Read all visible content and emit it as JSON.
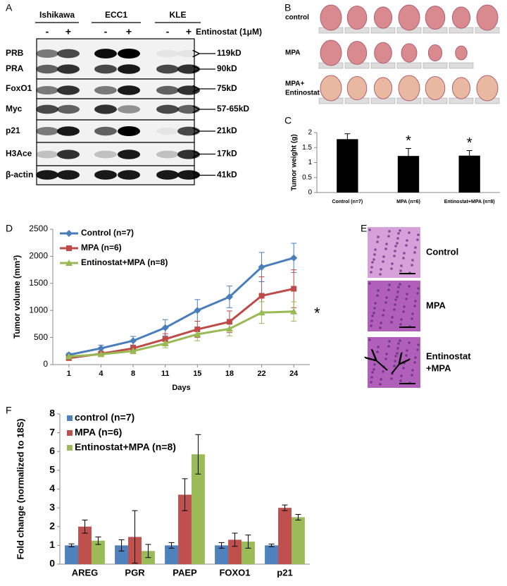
{
  "panel_letters": [
    "A",
    "B",
    "C",
    "D",
    "E",
    "F"
  ],
  "blot": {
    "cell_lines": [
      "Ishikawa",
      "ECC1",
      "KLE"
    ],
    "treatment": "Entinostat (1μM)",
    "signs": [
      "-",
      "+"
    ],
    "proteins": [
      "PRB",
      "PRA",
      "FoxO1",
      "Myc",
      "p21",
      "H3Ace",
      "β-actin"
    ],
    "sizes": [
      "119kD",
      "90kD",
      "75kD",
      "57-65kD",
      "21kD",
      "17kD",
      "41kD"
    ]
  },
  "tumor_photos": {
    "rows": [
      [
        "control"
      ],
      [
        "MPA"
      ],
      [
        "MPA+",
        "Entinostat"
      ]
    ]
  },
  "histology": {
    "labels": [
      [
        "Control"
      ],
      [
        "MPA"
      ],
      [
        "Entinostat",
        "+MPA"
      ]
    ]
  },
  "chart_data": [
    {
      "type": "bar",
      "ylabel": "Tumor weight (g)",
      "categories": [
        "Control (n=7)",
        "MPA (n=6)",
        "Entinostat+MPA (n=8)"
      ],
      "values": [
        1.78,
        1.22,
        1.23
      ],
      "errors": [
        0.18,
        0.25,
        0.17
      ],
      "significance": [
        null,
        "*",
        "*"
      ],
      "color": "#000000",
      "ylim": [
        0,
        2
      ],
      "yticks": [
        0,
        0.5,
        1,
        1.5,
        2
      ]
    },
    {
      "type": "line",
      "ylabel": "Tumor volume (mm³)",
      "xlabel": "Days",
      "categories": [
        1,
        4,
        8,
        11,
        15,
        18,
        22,
        24
      ],
      "series": [
        {
          "name": "Control (n=7)",
          "color": "#4a7ebb",
          "marker": "diamond",
          "values": [
            180,
            300,
            440,
            680,
            1000,
            1250,
            1800,
            1970
          ],
          "errors": [
            30,
            60,
            80,
            150,
            200,
            200,
            270,
            270
          ]
        },
        {
          "name": "MPA (n=6)",
          "color": "#be4b48",
          "marker": "square",
          "values": [
            120,
            200,
            300,
            470,
            650,
            790,
            1270,
            1400
          ],
          "errors": [
            30,
            50,
            60,
            100,
            150,
            200,
            350,
            350
          ]
        },
        {
          "name": "Entinostat+MPA (n=8)",
          "color": "#98b954",
          "marker": "triangle",
          "values": [
            150,
            190,
            250,
            390,
            560,
            660,
            960,
            980
          ],
          "errors": [
            30,
            40,
            50,
            80,
            120,
            130,
            200,
            180
          ]
        }
      ],
      "annotation": "*",
      "legend": "upper left",
      "ylim": [
        0,
        2500
      ],
      "yticks": [
        0,
        500,
        1000,
        1500,
        2000,
        2500
      ]
    },
    {
      "type": "bar",
      "ylabel": "Fold change (normalized to 18S)",
      "categories": [
        "AREG",
        "PGR",
        "PAEP",
        "FOXO1",
        "p21"
      ],
      "series": [
        {
          "name": "control (n=7)",
          "color": "#4f81bd",
          "values": [
            1,
            1,
            1,
            1,
            1
          ],
          "errors": [
            0.08,
            0.3,
            0.15,
            0.15,
            0.07
          ]
        },
        {
          "name": "MPA (n=6)",
          "color": "#c0504d",
          "values": [
            2,
            1.45,
            3.7,
            1.3,
            3
          ],
          "errors": [
            0.35,
            1.4,
            0.85,
            0.35,
            0.15
          ]
        },
        {
          "name": "Entinostat+MPA (n=8)",
          "color": "#9bbb59",
          "values": [
            1.25,
            0.7,
            5.85,
            1.2,
            2.5
          ],
          "errors": [
            0.2,
            0.35,
            1.05,
            0.35,
            0.15
          ]
        }
      ],
      "legend": "upper left",
      "ylim": [
        0,
        8
      ],
      "yticks": [
        0,
        1,
        2,
        3,
        4,
        5,
        6,
        7,
        8
      ]
    }
  ]
}
